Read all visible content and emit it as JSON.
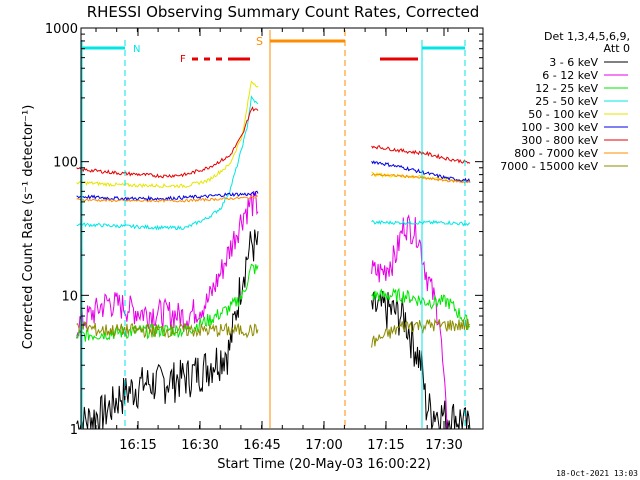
{
  "chart_data": {
    "type": "line",
    "title": "RHESSI Observing Summary Count Rates, Corrected",
    "xlabel": "Start Time (20-May-03 16:00:22)",
    "ylabel": "Corrected Count Rate (s⁻¹ detector⁻¹)",
    "yscale": "log",
    "ylim": [
      1,
      1000
    ],
    "xlim_minutes_after_16_00": [
      6,
      38
    ],
    "x_tick_labels": [
      "16:15",
      "16:30",
      "16:45",
      "17:00",
      "17:15",
      "17:30"
    ],
    "x_tick_values": [
      15,
      30,
      45,
      60,
      75,
      90
    ],
    "y_tick_labels": [
      "1",
      "10",
      "100",
      "1000"
    ],
    "y_tick_values": [
      1,
      10,
      100,
      1000
    ],
    "timestamp": "18-Oct-2021 13:03",
    "legend": {
      "header_line1": "Det 1,3,4,5,6,9,",
      "header_line2": "Att 0",
      "placement": "right"
    },
    "markers": {
      "N": "N",
      "F": "F",
      "S": "S"
    },
    "series": [
      {
        "name": "3 - 6 keV",
        "color": "#000000",
        "x": [
          5,
          8,
          12,
          15,
          20,
          25,
          30,
          35,
          40,
          43,
          45,
          73,
          76,
          80,
          84,
          85,
          88,
          93,
          95
        ],
        "y": [
          1.1,
          1.2,
          1.4,
          1.8,
          2.2,
          2.3,
          2.5,
          3,
          4,
          15,
          25,
          8,
          8,
          7,
          3,
          1.5,
          1.3,
          1.2,
          1
        ]
      },
      {
        "name": "6 - 12 keV",
        "color": "#e600e6",
        "x": [
          5,
          12,
          15,
          20,
          25,
          30,
          35,
          38,
          40,
          43,
          45,
          73,
          75,
          78,
          80,
          83,
          85,
          88,
          90,
          95
        ],
        "y": [
          6,
          9,
          8.5,
          7.5,
          7.5,
          7,
          9,
          15,
          22,
          40,
          50,
          15,
          15,
          20,
          35,
          30,
          15,
          7,
          0.8,
          0.8
        ]
      },
      {
        "name": "12 - 25 keV",
        "color": "#00e600",
        "x": [
          5,
          15,
          25,
          30,
          35,
          40,
          43,
          45,
          73,
          80,
          85,
          90,
          95
        ],
        "y": [
          5,
          5.3,
          5.5,
          5.5,
          6.5,
          8,
          10,
          16,
          10,
          10,
          9,
          9,
          6
        ]
      },
      {
        "name": "25 - 50 keV",
        "color": "#00e6e6",
        "x": [
          5,
          15,
          25,
          30,
          35,
          38,
          40,
          42,
          44,
          45,
          73,
          80,
          85,
          90,
          95
        ],
        "y": [
          34,
          33,
          32,
          32,
          38,
          45,
          60,
          100,
          180,
          300,
          35,
          35,
          35,
          35,
          34
        ]
      },
      {
        "name": "50 - 100 keV",
        "color": "#e6e600",
        "x": [
          5,
          15,
          25,
          30,
          35,
          40,
          43,
          45,
          73,
          80,
          85,
          90,
          95
        ],
        "y": [
          70,
          67,
          66,
          66,
          72,
          95,
          160,
          400,
          80,
          78,
          76,
          74,
          71
        ]
      },
      {
        "name": "100 - 300 keV",
        "color": "#0000e6",
        "x": [
          5,
          15,
          25,
          30,
          35,
          40,
          45,
          73,
          80,
          85,
          90,
          95
        ],
        "y": [
          55,
          53,
          53,
          54,
          55,
          57,
          57,
          100,
          90,
          82,
          75,
          72
        ]
      },
      {
        "name": "300 - 800 keV",
        "color": "#e60000",
        "x": [
          5,
          15,
          25,
          30,
          35,
          40,
          43,
          45,
          73,
          80,
          85,
          90,
          95
        ],
        "y": [
          88,
          82,
          78,
          80,
          90,
          110,
          160,
          250,
          130,
          120,
          115,
          105,
          98
        ]
      },
      {
        "name": "800 - 7000 keV",
        "color": "#ff8c00",
        "x": [
          5,
          15,
          25,
          30,
          35,
          40,
          45,
          73,
          80,
          85,
          90,
          95
        ],
        "y": [
          52,
          51,
          51,
          51,
          52,
          53,
          54,
          80,
          78,
          75,
          72,
          70
        ]
      },
      {
        "name": "7000 - 15000 keV",
        "color": "#8c8c00",
        "x": [
          5,
          10,
          15,
          20,
          25,
          30,
          35,
          40,
          45,
          73,
          80,
          85,
          90,
          95
        ],
        "y": [
          6,
          5.5,
          5.5,
          5.5,
          5.5,
          5.5,
          5.5,
          5.5,
          5.5,
          4.5,
          6,
          6,
          6,
          6
        ]
      }
    ]
  }
}
